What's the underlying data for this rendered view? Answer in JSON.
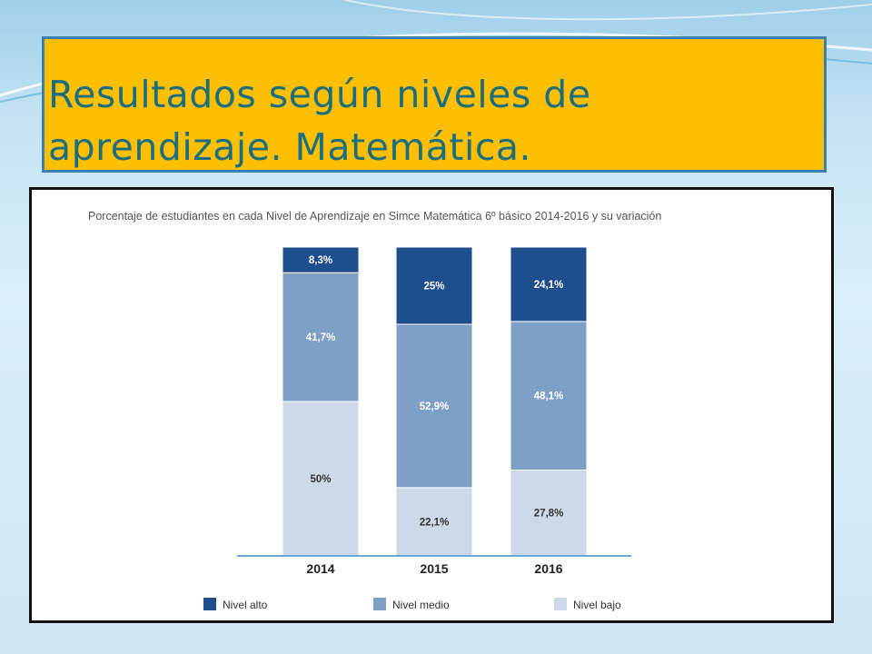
{
  "slide": {
    "title_line1": "Resultados según niveles de",
    "title_line2": "aprendizaje. Matemática."
  },
  "colors": {
    "title_bg": "#fdbf00",
    "title_text": "#1a6e7f",
    "nivel_alto": "#1f4e8f",
    "nivel_medio": "#7ea0c6",
    "nivel_bajo": "#cdd9e8"
  },
  "chart_data": {
    "type": "bar",
    "stacked": true,
    "title": "Porcentaje de estudiantes en cada Nivel de Aprendizaje en Simce Matemática 6º básico 2014-2016 y su variación",
    "categories": [
      "2014",
      "2015",
      "2016"
    ],
    "series": [
      {
        "name": "Nivel bajo",
        "values": [
          50,
          22.1,
          27.8
        ],
        "labels": [
          "50%",
          "22,1%",
          "27,8%"
        ],
        "color": "#cdd9e8"
      },
      {
        "name": "Nivel medio",
        "values": [
          41.7,
          52.9,
          48.1
        ],
        "labels": [
          "41,7%",
          "52,9%",
          "48,1%"
        ],
        "color": "#7ea0c6"
      },
      {
        "name": "Nivel alto",
        "values": [
          8.3,
          25,
          24.1
        ],
        "labels": [
          "8,3%",
          "25%",
          "24,1%"
        ],
        "color": "#1f4e8f"
      }
    ],
    "legend": [
      "Nivel alto",
      "Nivel medio",
      "Nivel bajo"
    ],
    "legend_position": "bottom",
    "ylim": [
      0,
      100
    ],
    "grid": false
  }
}
